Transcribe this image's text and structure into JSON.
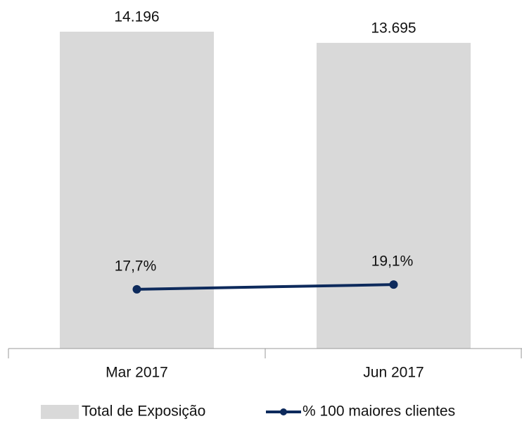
{
  "chart_data": {
    "type": "bar",
    "categories": [
      "Mar 2017",
      "Jun 2017"
    ],
    "series": [
      {
        "name": "Total de Exposição",
        "type": "bar",
        "color": "#d9d9d9",
        "values": [
          14196,
          13695
        ],
        "value_labels": [
          "14.196",
          "13.695"
        ]
      },
      {
        "name": "% 100 maiores clientes",
        "type": "line",
        "axis": "y2",
        "color": "#0d2a5c",
        "values": [
          17.7,
          19.1
        ],
        "value_labels": [
          "17,7%",
          "19,1%"
        ]
      }
    ],
    "ylim": [
      0,
      15000
    ],
    "y2lim": [
      0,
      100
    ],
    "legend": "bottom"
  }
}
